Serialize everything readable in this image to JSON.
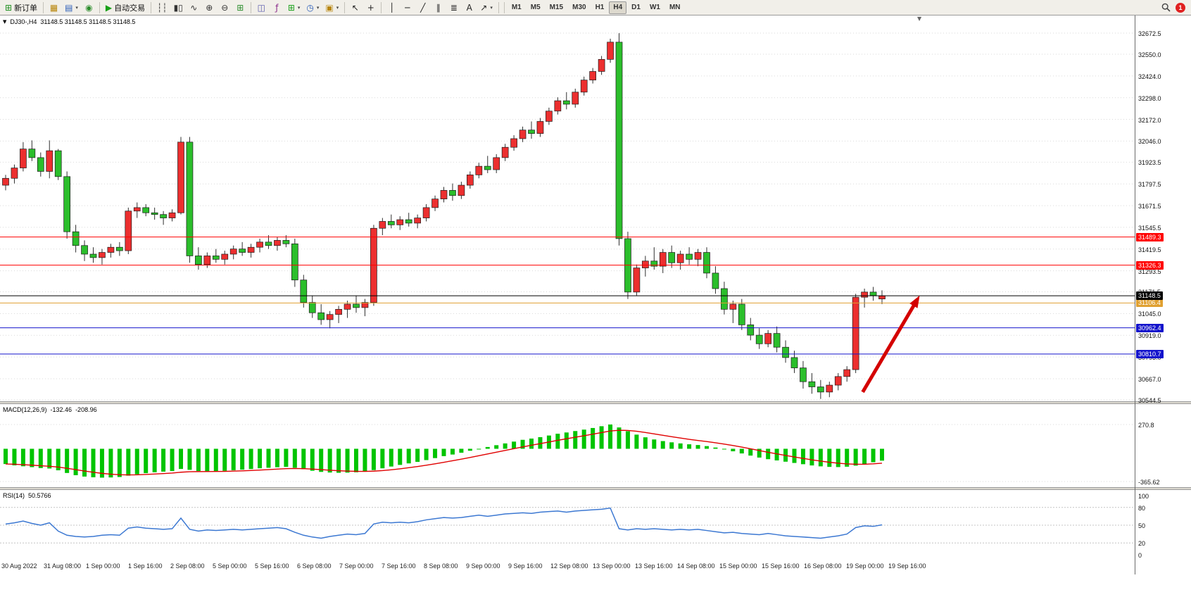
{
  "window": {
    "badge_count": "1"
  },
  "toolbar": {
    "buttons": [
      {
        "name": "new-order-button",
        "icon": "new-order-icon",
        "glyph": "⊞",
        "glyph_color": "#1E8E1E",
        "label": "新订单"
      },
      {
        "sep": true
      },
      {
        "name": "new-chart-button",
        "icon": "new-chart-icon",
        "glyph": "▦",
        "glyph_color": "#B8860B"
      },
      {
        "name": "profiles-button",
        "icon": "profiles-icon",
        "glyph": "▤",
        "glyph_color": "#2A5CB8",
        "dropdown": true
      },
      {
        "name": "refresh-button",
        "icon": "refresh-icon",
        "glyph": "◉",
        "glyph_color": "#2E8E2E"
      },
      {
        "sep": true
      },
      {
        "name": "auto-trading-button",
        "icon": "auto-trading-icon",
        "glyph": "▶",
        "glyph_color": "#18A018",
        "label": "自动交易"
      },
      {
        "sep": true
      },
      {
        "name": "bar-chart-mode-button",
        "icon": "bar-chart-icon",
        "glyph": "┆┆",
        "glyph_color": "#333333"
      },
      {
        "name": "candle-chart-mode-button",
        "icon": "candlestick-icon",
        "glyph": "▮▯",
        "glyph_color": "#333333"
      },
      {
        "name": "line-chart-mode-button",
        "icon": "line-chart-icon",
        "glyph": "∿",
        "glyph_color": "#333333"
      },
      {
        "name": "zoom-in-button",
        "icon": "zoom-in-icon",
        "glyph": "⊕",
        "glyph_color": "#333333"
      },
      {
        "name": "zoom-out-button",
        "icon": "zoom-out-icon",
        "glyph": "⊖",
        "glyph_color": "#333333"
      },
      {
        "name": "tile-windows-button",
        "icon": "tile-windows-icon",
        "glyph": "⊞",
        "glyph_color": "#2E8E2E"
      },
      {
        "sep": true
      },
      {
        "name": "auto-arrange-button",
        "icon": "arrange-icon",
        "glyph": "◫",
        "glyph_color": "#5555AA"
      },
      {
        "name": "indicator-list-button",
        "icon": "indicator-list-icon",
        "glyph": "ƒ",
        "glyph_color": "#8A2A8A"
      },
      {
        "name": "add-indicator-button",
        "icon": "add-indicator-icon",
        "glyph": "⊞",
        "glyph_color": "#18A018",
        "dropdown": true
      },
      {
        "name": "periods-button",
        "icon": "clock-icon",
        "glyph": "◷",
        "glyph_color": "#2A5CB8",
        "dropdown": true
      },
      {
        "name": "templates-button",
        "icon": "template-icon",
        "glyph": "▣",
        "glyph_color": "#B8860B",
        "dropdown": true
      },
      {
        "sep": true
      },
      {
        "name": "cursor-button",
        "icon": "cursor-icon",
        "glyph": "↖",
        "glyph_color": "#222222"
      },
      {
        "name": "crosshair-button",
        "icon": "crosshair-icon",
        "glyph": "+",
        "glyph_color": "#222222"
      },
      {
        "sep": true
      },
      {
        "name": "vertical-line-button",
        "icon": "vertical-line-icon",
        "glyph": "│",
        "glyph_color": "#222222"
      },
      {
        "name": "horizontal-line-button",
        "icon": "horizontal-line-icon",
        "glyph": "─",
        "glyph_color": "#222222"
      },
      {
        "name": "trendline-button",
        "icon": "trendline-icon",
        "glyph": "╱",
        "glyph_color": "#222222"
      },
      {
        "name": "channel-button",
        "icon": "channel-icon",
        "glyph": "∥",
        "glyph_color": "#222222"
      },
      {
        "name": "fibonacci-button",
        "icon": "fibonacci-icon",
        "glyph": "≣",
        "glyph_color": "#222222"
      },
      {
        "name": "text-tool-button",
        "icon": "text-icon",
        "glyph": "A",
        "glyph_color": "#222222"
      },
      {
        "name": "arrows-tool-button",
        "icon": "arrow-icon",
        "glyph": "↗",
        "glyph_color": "#222222",
        "dropdown": true
      },
      {
        "sep": true
      }
    ],
    "timeframes": [
      "M1",
      "M5",
      "M15",
      "M30",
      "H1",
      "H4",
      "D1",
      "W1",
      "MN"
    ],
    "active_timeframe": "H4"
  },
  "chart": {
    "title_symbol": "DJ30-,H4",
    "title_ohlc": "31148.5 31148.5 31148.5 31148.5",
    "colors": {
      "bull": "#EC2F2F",
      "bear": "#2BBE2B",
      "wick": "#303030",
      "grid": "#DADADA",
      "macd_bar": "#00C400",
      "macd_signal": "#E00000",
      "rsi_line": "#3C78D2",
      "arrow": "#D40000"
    }
  },
  "macd_panel": {
    "label": "MACD(12,26,9)",
    "value_main": "-132.46",
    "value_signal": "-208.96"
  },
  "rsi_panel": {
    "label": "RSI(14)",
    "value": "50.5766"
  },
  "chart_data": {
    "type": "candlestick",
    "symbol": "DJ30-",
    "timeframe": "H4",
    "price_range": [
      30544.5,
      32672.5
    ],
    "price_axis_labels": [
      "32672.5",
      "32550.0",
      "32424.0",
      "32298.0",
      "32172.0",
      "32046.0",
      "31923.5",
      "31797.5",
      "31671.5",
      "31545.5",
      "31419.5",
      "31293.5",
      "31171.5",
      "31045.0",
      "30919.0",
      "30793.0",
      "30667.0",
      "30544.5"
    ],
    "time_axis_labels": [
      "30 Aug 2022",
      "31 Aug 08:00",
      "1 Sep 00:00",
      "1 Sep 16:00",
      "2 Sep 08:00",
      "5 Sep 00:00",
      "5 Sep 16:00",
      "6 Sep 08:00",
      "7 Sep 00:00",
      "7 Sep 16:00",
      "8 Sep 08:00",
      "9 Sep 00:00",
      "9 Sep 16:00",
      "12 Sep 08:00",
      "13 Sep 00:00",
      "13 Sep 16:00",
      "14 Sep 08:00",
      "15 Sep 00:00",
      "15 Sep 16:00",
      "16 Sep 08:00",
      "19 Sep 00:00",
      "19 Sep 16:00"
    ],
    "hlines": [
      {
        "price": 31489.3,
        "label": "31489.3",
        "color": "#FF0000"
      },
      {
        "price": 31326.3,
        "label": "31326.3",
        "color": "#FF0000"
      },
      {
        "price": 31106.4,
        "label": "31106.4",
        "color": "#E0A030"
      },
      {
        "price": 31148.5,
        "label": "31148.5",
        "color": "#000000"
      },
      {
        "price": 30962.4,
        "label": "30962.4",
        "color": "#1414CC"
      },
      {
        "price": 30810.7,
        "label": "30810.7",
        "color": "#1414CC"
      }
    ],
    "arrow_annotation": {
      "from_candle": 97.8,
      "from_price": 30590,
      "to_candle": 104.3,
      "to_price": 31150
    },
    "candles": [
      [
        31790,
        31850,
        31760,
        31830
      ],
      [
        31830,
        31910,
        31800,
        31890
      ],
      [
        31890,
        32040,
        31870,
        32000
      ],
      [
        32000,
        32050,
        31930,
        31950
      ],
      [
        31950,
        31980,
        31840,
        31870
      ],
      [
        31870,
        32050,
        31830,
        31990
      ],
      [
        31990,
        32000,
        31820,
        31840
      ],
      [
        31840,
        31870,
        31480,
        31520
      ],
      [
        31520,
        31560,
        31400,
        31440
      ],
      [
        31440,
        31470,
        31350,
        31390
      ],
      [
        31390,
        31430,
        31340,
        31370
      ],
      [
        31370,
        31420,
        31330,
        31400
      ],
      [
        31400,
        31450,
        31370,
        31430
      ],
      [
        31430,
        31460,
        31380,
        31410
      ],
      [
        31410,
        31660,
        31390,
        31640
      ],
      [
        31640,
        31690,
        31600,
        31660
      ],
      [
        31660,
        31680,
        31610,
        31630
      ],
      [
        31630,
        31660,
        31590,
        31620
      ],
      [
        31620,
        31640,
        31560,
        31600
      ],
      [
        31600,
        31650,
        31580,
        31630
      ],
      [
        31630,
        32070,
        31620,
        32040
      ],
      [
        32040,
        32070,
        31340,
        31380
      ],
      [
        31380,
        31430,
        31300,
        31330
      ],
      [
        31330,
        31400,
        31310,
        31380
      ],
      [
        31380,
        31420,
        31340,
        31360
      ],
      [
        31360,
        31410,
        31330,
        31390
      ],
      [
        31390,
        31440,
        31360,
        31420
      ],
      [
        31420,
        31460,
        31380,
        31400
      ],
      [
        31400,
        31450,
        31370,
        31430
      ],
      [
        31430,
        31480,
        31400,
        31460
      ],
      [
        31460,
        31500,
        31420,
        31440
      ],
      [
        31440,
        31490,
        31410,
        31470
      ],
      [
        31470,
        31500,
        31430,
        31450
      ],
      [
        31450,
        31480,
        31200,
        31240
      ],
      [
        31240,
        31270,
        31080,
        31110
      ],
      [
        31110,
        31150,
        31020,
        31050
      ],
      [
        31050,
        31100,
        30980,
        31010
      ],
      [
        31010,
        31060,
        30960,
        31040
      ],
      [
        31040,
        31090,
        30990,
        31070
      ],
      [
        31070,
        31120,
        31020,
        31100
      ],
      [
        31100,
        31150,
        31050,
        31080
      ],
      [
        31080,
        31130,
        31030,
        31110
      ],
      [
        31110,
        31560,
        31090,
        31540
      ],
      [
        31540,
        31600,
        31500,
        31580
      ],
      [
        31580,
        31620,
        31540,
        31560
      ],
      [
        31560,
        31610,
        31530,
        31590
      ],
      [
        31590,
        31630,
        31550,
        31570
      ],
      [
        31570,
        31620,
        31540,
        31600
      ],
      [
        31600,
        31680,
        31580,
        31660
      ],
      [
        31660,
        31730,
        31640,
        31710
      ],
      [
        31710,
        31780,
        31690,
        31760
      ],
      [
        31760,
        31800,
        31700,
        31730
      ],
      [
        31730,
        31810,
        31710,
        31790
      ],
      [
        31790,
        31870,
        31770,
        31850
      ],
      [
        31850,
        31920,
        31830,
        31900
      ],
      [
        31900,
        31960,
        31860,
        31880
      ],
      [
        31880,
        31970,
        31860,
        31950
      ],
      [
        31950,
        32030,
        31930,
        32010
      ],
      [
        32010,
        32080,
        31990,
        32060
      ],
      [
        32060,
        32130,
        32040,
        32110
      ],
      [
        32110,
        32160,
        32060,
        32090
      ],
      [
        32090,
        32180,
        32070,
        32160
      ],
      [
        32160,
        32240,
        32140,
        32220
      ],
      [
        32220,
        32300,
        32200,
        32280
      ],
      [
        32280,
        32330,
        32230,
        32260
      ],
      [
        32260,
        32350,
        32240,
        32330
      ],
      [
        32330,
        32420,
        32310,
        32400
      ],
      [
        32400,
        32470,
        32380,
        32450
      ],
      [
        32450,
        32540,
        32430,
        32520
      ],
      [
        32520,
        32640,
        32500,
        32620
      ],
      [
        32620,
        32672,
        31440,
        31480
      ],
      [
        31480,
        31520,
        31130,
        31170
      ],
      [
        31170,
        31330,
        31150,
        31310
      ],
      [
        31310,
        31380,
        31260,
        31350
      ],
      [
        31350,
        31430,
        31300,
        31320
      ],
      [
        31320,
        31420,
        31280,
        31400
      ],
      [
        31400,
        31440,
        31310,
        31340
      ],
      [
        31340,
        31410,
        31300,
        31390
      ],
      [
        31390,
        31430,
        31330,
        31360
      ],
      [
        31360,
        31420,
        31320,
        31400
      ],
      [
        31400,
        31430,
        31250,
        31280
      ],
      [
        31280,
        31320,
        31160,
        31190
      ],
      [
        31190,
        31230,
        31040,
        31070
      ],
      [
        31070,
        31120,
        30990,
        31100
      ],
      [
        31100,
        31130,
        30950,
        30980
      ],
      [
        30980,
        31020,
        30890,
        30920
      ],
      [
        30920,
        30960,
        30840,
        30870
      ],
      [
        30870,
        30950,
        30850,
        30930
      ],
      [
        30930,
        30970,
        30820,
        30850
      ],
      [
        30850,
        30890,
        30760,
        30790
      ],
      [
        30790,
        30830,
        30700,
        30730
      ],
      [
        30730,
        30770,
        30610,
        30650
      ],
      [
        30650,
        30700,
        30580,
        30620
      ],
      [
        30620,
        30660,
        30550,
        30590
      ],
      [
        30590,
        30650,
        30560,
        30630
      ],
      [
        30630,
        30700,
        30600,
        30680
      ],
      [
        30680,
        30740,
        30650,
        30720
      ],
      [
        30720,
        31160,
        30700,
        31140
      ],
      [
        31140,
        31190,
        31080,
        31170
      ],
      [
        31170,
        31200,
        31120,
        31150
      ],
      [
        31130,
        31180,
        31100,
        31148.5
      ]
    ],
    "macd": {
      "params": "12,26,9",
      "axis_labels": [
        "270.8",
        "-365.62"
      ],
      "max": 270.8,
      "min": -365.62,
      "values": [
        -170,
        -185,
        -195,
        -205,
        -215,
        -220,
        -240,
        -270,
        -295,
        -310,
        -318,
        -322,
        -320,
        -315,
        -300,
        -285,
        -272,
        -262,
        -255,
        -248,
        -225,
        -235,
        -248,
        -252,
        -250,
        -246,
        -240,
        -233,
        -226,
        -218,
        -212,
        -206,
        -202,
        -212,
        -228,
        -245,
        -258,
        -265,
        -268,
        -266,
        -262,
        -256,
        -238,
        -218,
        -198,
        -180,
        -163,
        -146,
        -126,
        -104,
        -82,
        -64,
        -44,
        -22,
        0,
        20,
        40,
        60,
        80,
        100,
        114,
        130,
        148,
        168,
        182,
        198,
        214,
        232,
        252,
        270.8,
        238,
        196,
        158,
        128,
        104,
        86,
        72,
        60,
        50,
        42,
        30,
        14,
        -6,
        -28,
        -52,
        -76,
        -98,
        -116,
        -130,
        -144,
        -158,
        -172,
        -186,
        -196,
        -202,
        -204,
        -200,
        -188,
        -170,
        -150,
        -132.46
      ]
    },
    "rsi": {
      "params": "14",
      "axis_labels": [
        "100",
        "80",
        "50",
        "20",
        "0"
      ],
      "levels": [
        80,
        50,
        20
      ],
      "values": [
        52,
        54,
        57,
        53,
        50,
        54,
        40,
        33,
        31,
        30,
        31,
        33,
        34,
        33,
        45,
        47,
        45,
        44,
        43,
        44,
        62,
        43,
        40,
        42,
        41,
        42,
        43,
        42,
        43,
        44,
        45,
        46,
        44,
        38,
        33,
        30,
        28,
        31,
        33,
        35,
        34,
        36,
        52,
        55,
        54,
        55,
        54,
        56,
        59,
        61,
        63,
        62,
        63,
        65,
        67,
        65,
        67,
        69,
        70,
        71,
        70,
        72,
        73,
        74,
        72,
        74,
        75,
        76,
        77,
        79,
        44,
        42,
        44,
        43,
        44,
        43,
        42,
        43,
        42,
        43,
        41,
        39,
        37,
        38,
        36,
        35,
        34,
        36,
        34,
        32,
        31,
        30,
        29,
        28,
        30,
        32,
        35,
        46,
        49,
        48,
        50.58
      ]
    }
  }
}
